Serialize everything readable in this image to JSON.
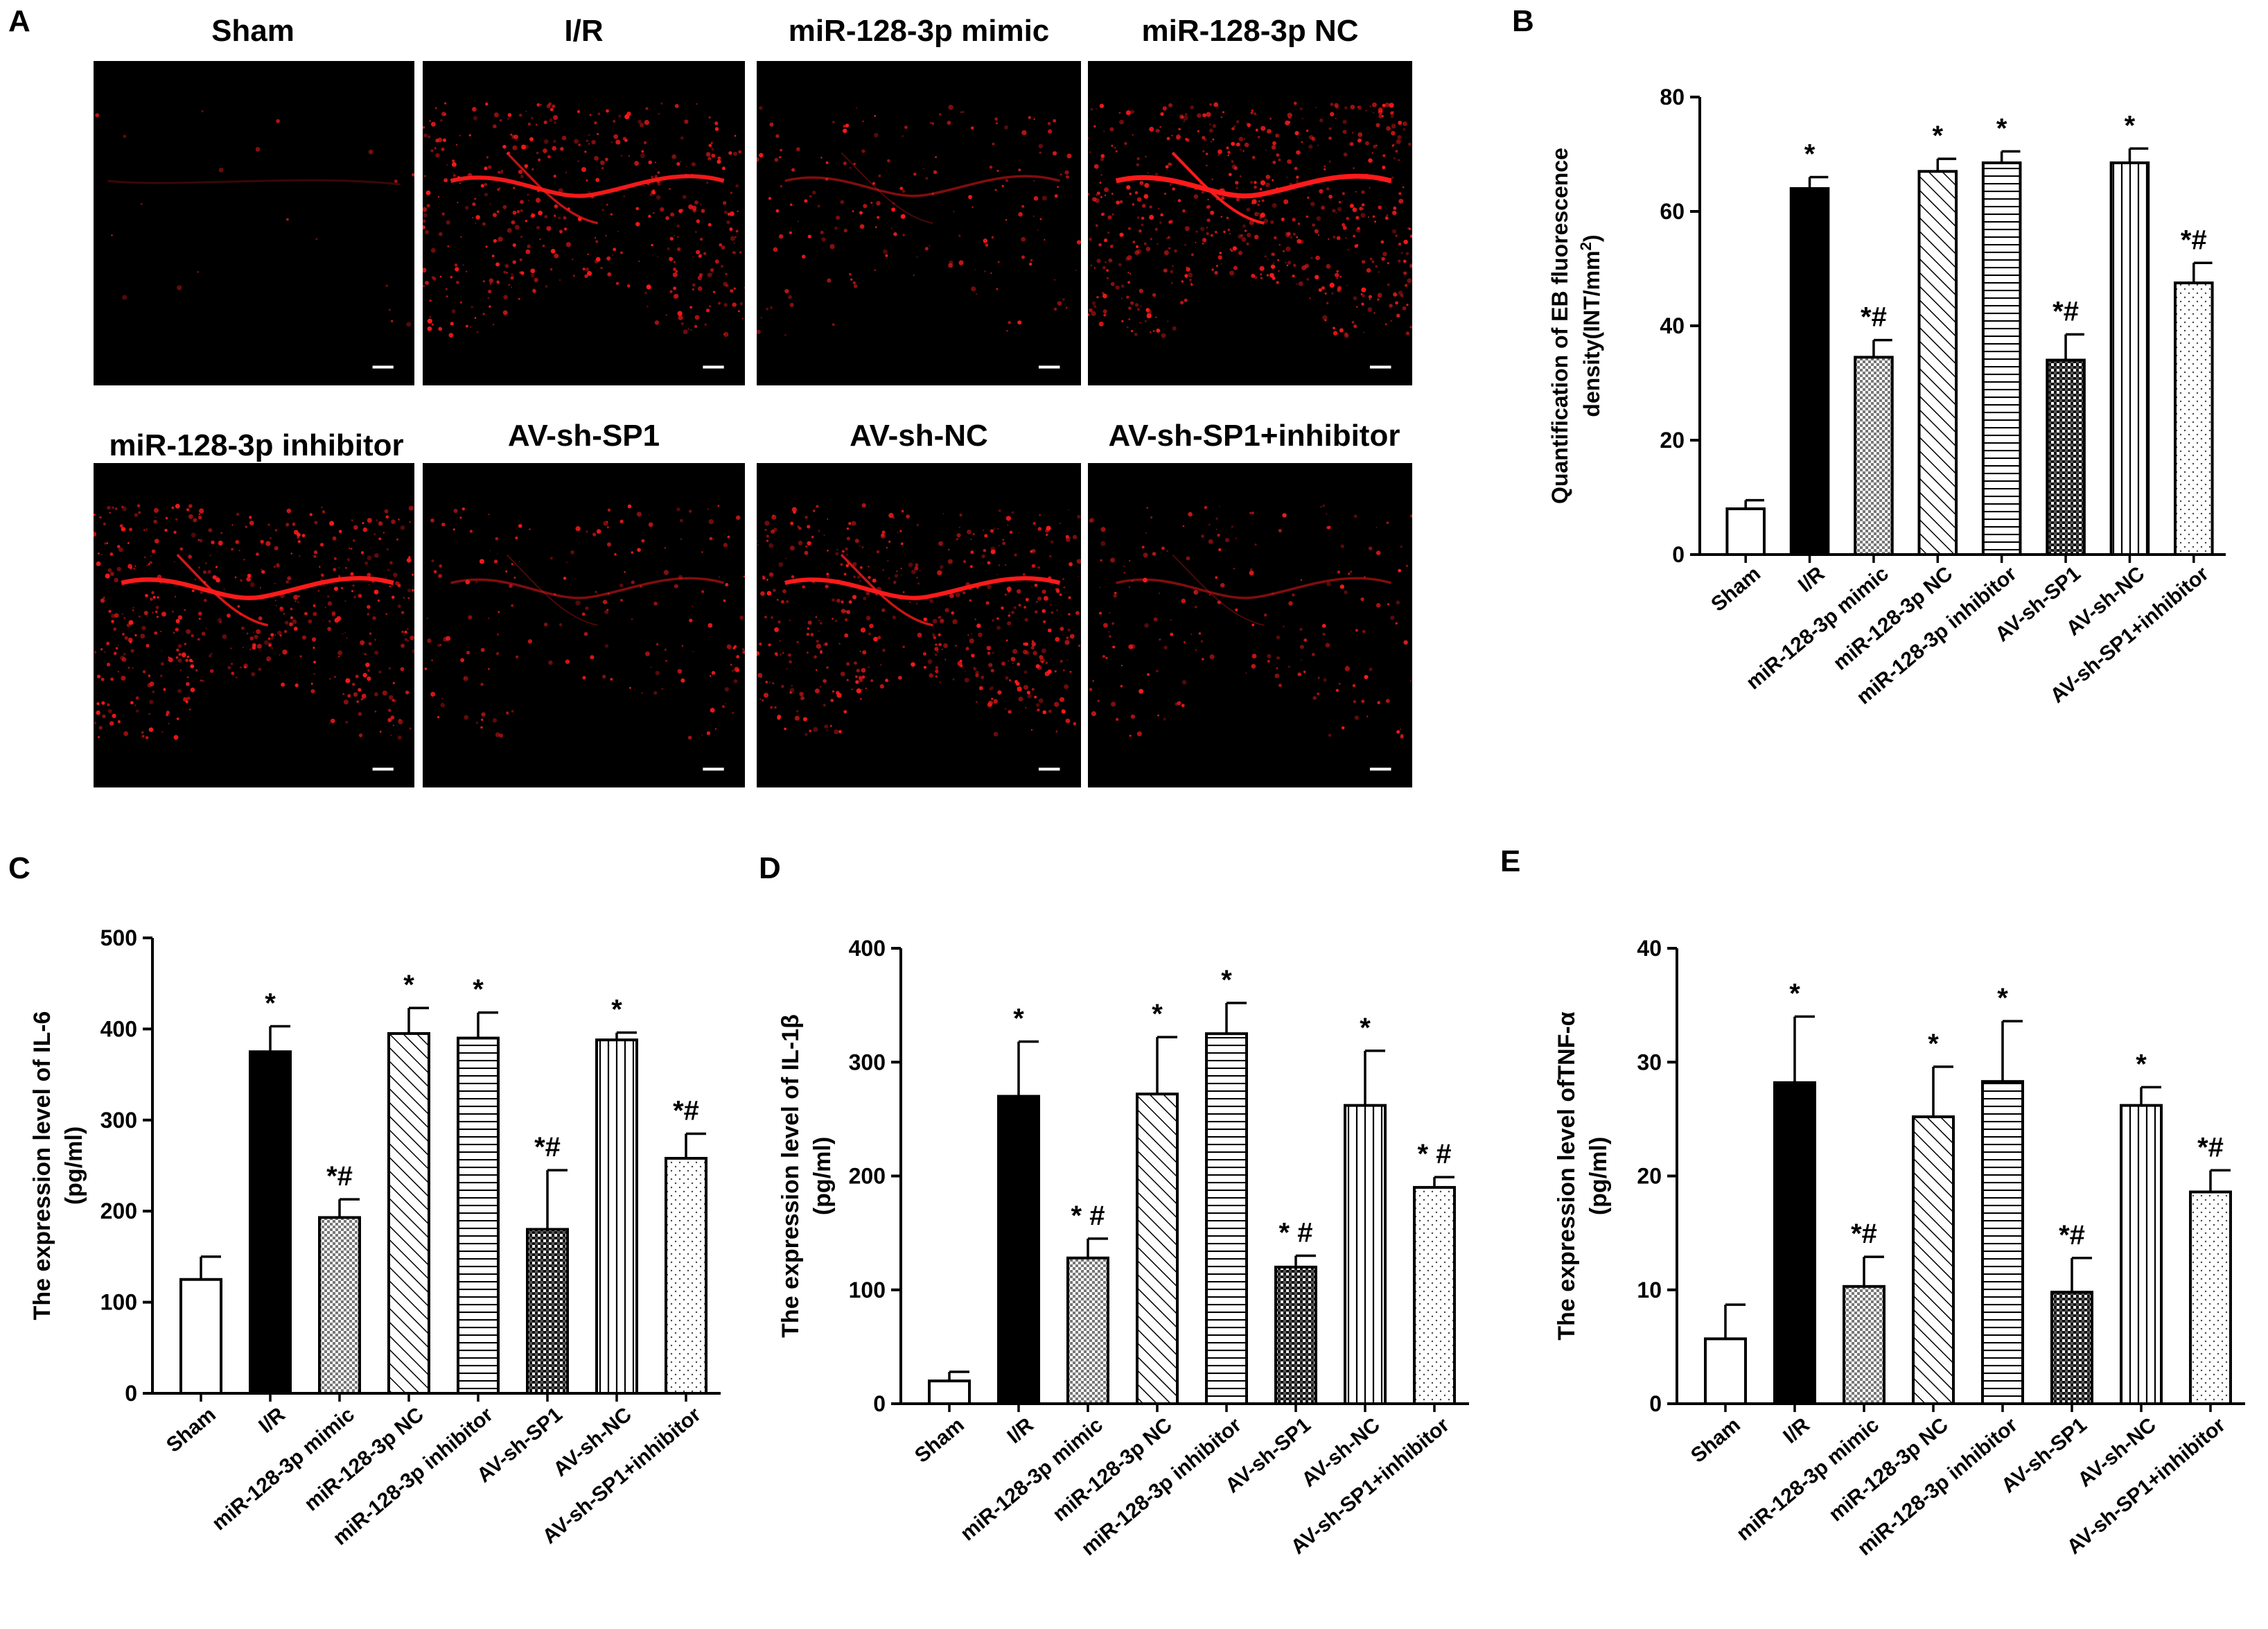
{
  "panel_labels": [
    "A",
    "B",
    "C",
    "D",
    "E"
  ],
  "image_panel": {
    "titles": [
      "Sham",
      "I/R",
      "miR-128-3p mimic",
      "miR-128-3p NC",
      "miR-128-3p inhibitor",
      "AV-sh-SP1",
      "AV-sh-NC",
      "AV-sh-SP1+inhibitor"
    ],
    "signal_level": [
      0.03,
      0.75,
      0.3,
      1.0,
      0.85,
      0.3,
      0.8,
      0.3
    ],
    "signal_color": "#ff1a1a"
  },
  "colors": {
    "bar_outline": "#000000",
    "fill_ir": "#000000",
    "fill_sham": "#ffffff"
  },
  "chart_data": [
    {
      "panel": "B",
      "type": "bar",
      "categories": [
        "Sham",
        "I/R",
        "miR-128-3p mimic",
        "miR-128-3p NC",
        "miR-128-3p inhibitor",
        "AV-sh-SP1",
        "AV-sh-NC",
        "AV-sh-SP1+inhibitor"
      ],
      "values": [
        8,
        64,
        34.5,
        67,
        68.5,
        34,
        68.5,
        47.5
      ],
      "errors": [
        1.5,
        2,
        3,
        2.2,
        2,
        4.5,
        2.5,
        3.5
      ],
      "annotations": [
        "",
        "*",
        "*#",
        "*",
        "*",
        "*#",
        "*",
        "*#"
      ],
      "patterns": [
        "white",
        "black",
        "checker",
        "diagonal",
        "horizontal",
        "dark-checker",
        "vertical",
        "dots"
      ],
      "ylabel_line1": "Quantification of EB fluorescence",
      "ylabel_line2_prefix": "density(INT/mm",
      "ylabel_line2_sup": "2",
      "ylabel_line2_suffix": ")",
      "ylim": [
        0,
        80
      ],
      "yticks": [
        0,
        20,
        40,
        60,
        80
      ],
      "grid": false
    },
    {
      "panel": "C",
      "type": "bar",
      "categories": [
        "Sham",
        "I/R",
        "miR-128-3p mimic",
        "miR-128-3p NC",
        "miR-128-3p inhibitor",
        "AV-sh-SP1",
        "AV-sh-NC",
        "AV-sh-SP1+inhibitor"
      ],
      "values": [
        125,
        375,
        193,
        395,
        390,
        180,
        388,
        258
      ],
      "errors": [
        25,
        28,
        20,
        28,
        28,
        65,
        8,
        27
      ],
      "annotations": [
        "",
        "*",
        "*#",
        "*",
        "*",
        "*#",
        "*",
        "*#"
      ],
      "patterns": [
        "white",
        "black",
        "checker",
        "diagonal",
        "horizontal",
        "dark-checker",
        "vertical",
        "dots"
      ],
      "ylabel_line1": "The expression level of IL-6",
      "ylabel_line2": "(pg/ml)",
      "ylim": [
        0,
        500
      ],
      "yticks": [
        0,
        100,
        200,
        300,
        400,
        500
      ],
      "grid": false
    },
    {
      "panel": "D",
      "type": "bar",
      "categories": [
        "Sham",
        "I/R",
        "miR-128-3p mimic",
        "miR-128-3p NC",
        "miR-128-3p inhibitor",
        "AV-sh-SP1",
        "AV-sh-NC",
        "AV-sh-SP1+inhibitor"
      ],
      "values": [
        20,
        270,
        128,
        272,
        325,
        120,
        262,
        190
      ],
      "errors": [
        8,
        48,
        17,
        50,
        27,
        10,
        48,
        9
      ],
      "annotations": [
        "",
        "*",
        "* #",
        "*",
        "*",
        "* #",
        "*",
        "* #"
      ],
      "patterns": [
        "white",
        "black",
        "checker",
        "diagonal",
        "horizontal",
        "dark-checker",
        "vertical",
        "dots"
      ],
      "ylabel_line1": "The expression level of IL-1β",
      "ylabel_line2": "(pg/ml)",
      "ylim": [
        0,
        400
      ],
      "yticks": [
        0,
        100,
        200,
        300,
        400
      ],
      "grid": false
    },
    {
      "panel": "E",
      "type": "bar",
      "categories": [
        "Sham",
        "I/R",
        "miR-128-3p mimic",
        "miR-128-3p NC",
        "miR-128-3p inhibitor",
        "AV-sh-SP1",
        "AV-sh-NC",
        "AV-sh-SP1+inhibitor"
      ],
      "values": [
        5.7,
        28.2,
        10.3,
        25.2,
        28.3,
        9.8,
        26.2,
        18.6
      ],
      "errors": [
        3,
        5.8,
        2.6,
        4.4,
        5.3,
        3,
        1.6,
        1.9
      ],
      "annotations": [
        "",
        "*",
        "*#",
        "*",
        "*",
        "*#",
        "*",
        "*#"
      ],
      "patterns": [
        "white",
        "black",
        "checker",
        "diagonal",
        "horizontal",
        "dark-checker",
        "vertical",
        "dots"
      ],
      "ylabel_line1": "The expression level ofTNF-α",
      "ylabel_line2": "(pg/ml)",
      "ylim": [
        0,
        40
      ],
      "yticks": [
        0,
        10,
        20,
        30,
        40
      ],
      "grid": false
    }
  ]
}
